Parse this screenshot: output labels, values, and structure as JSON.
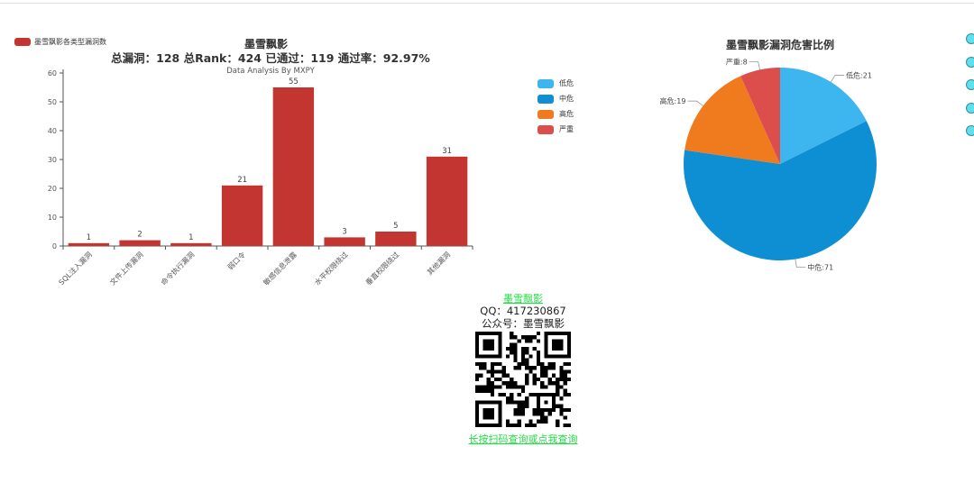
{
  "bar_chart": {
    "title": "墨雪飘影",
    "subtitle": "总漏洞：128 总Rank：424 已通过：119 通过率：92.97%",
    "credit": "Data Analysis By MXPY",
    "legend_label": "墨雪飘影各类型漏洞数",
    "color": "#c23531"
  },
  "pie_chart": {
    "title": "墨雪飘影漏洞危害比例",
    "legend": [
      {
        "label": "低危",
        "color": "#3db5ee"
      },
      {
        "label": "中危",
        "color": "#0f8fd3"
      },
      {
        "label": "高危",
        "color": "#f07b1f"
      },
      {
        "label": "严重",
        "color": "#db4e4b"
      }
    ]
  },
  "chart_data": [
    {
      "type": "bar",
      "title": "墨雪飘影",
      "subtitle": "总漏洞：128 总Rank：424 已通过：119 通过率：92.97%",
      "categories": [
        "SQL注入漏洞",
        "文件上传漏洞",
        "命令执行漏洞",
        "弱口令",
        "敏感信息泄露",
        "水平权限绕过",
        "垂直权限绕过",
        "其他漏洞"
      ],
      "series": [
        {
          "name": "墨雪飘影各类型漏洞数",
          "values": [
            1,
            2,
            1,
            21,
            55,
            3,
            5,
            31
          ]
        }
      ],
      "ylim": [
        0,
        60
      ],
      "yticks": [
        0,
        10,
        20,
        30,
        40,
        50,
        60
      ],
      "grid": false,
      "legend_position": "top-left"
    },
    {
      "type": "pie",
      "title": "墨雪飘影漏洞危害比例",
      "labels": [
        "低危",
        "中危",
        "高危",
        "严重"
      ],
      "values": [
        21,
        71,
        19,
        8
      ],
      "legend_position": "left"
    }
  ],
  "promo": {
    "link_text": "墨雪飘影",
    "qq_line": "QQ：417230867",
    "wechat_line": "公众号：墨雪飘影",
    "qr_caption": "长按扫码查询或点我查询"
  }
}
